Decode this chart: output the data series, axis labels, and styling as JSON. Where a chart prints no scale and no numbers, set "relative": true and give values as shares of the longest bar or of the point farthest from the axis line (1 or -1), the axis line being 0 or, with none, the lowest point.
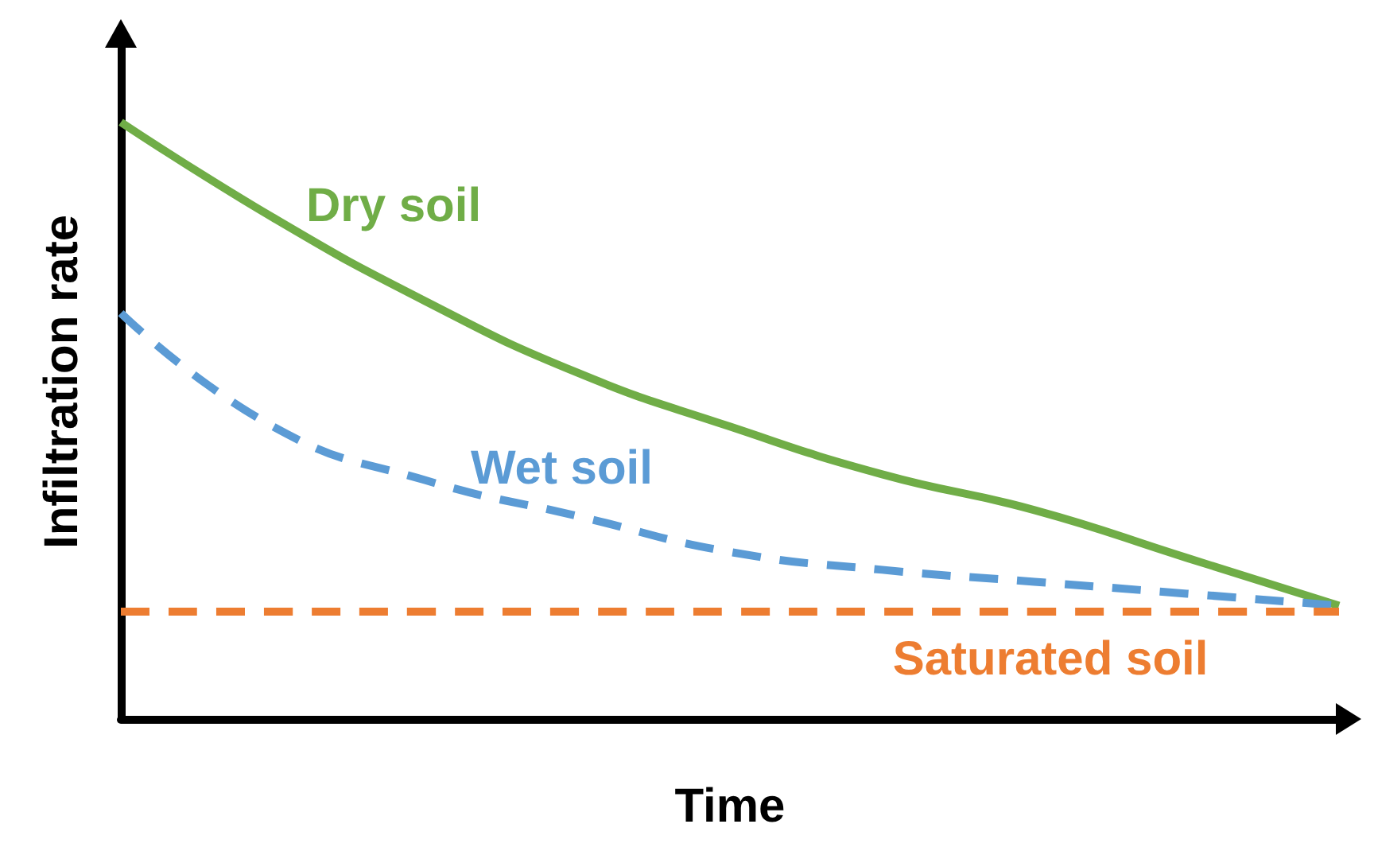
{
  "chart_data": {
    "type": "line",
    "relative": true,
    "xlabel": "Time",
    "ylabel": "Infiltration rate",
    "grid": false,
    "legend": false,
    "marker": "none",
    "categories": [
      null,
      null,
      null,
      null,
      null,
      null,
      null,
      null,
      null
    ],
    "series": [
      {
        "name": "Dry soil",
        "color": "#70ad47",
        "line_style": "solid",
        "values": [
          1,
          0.84,
          0.7,
          0.58,
          0.49,
          0.41,
          0.35,
          0.27,
          0.19
        ]
      },
      {
        "name": "Wet soil",
        "color": "#5b9bd5",
        "line_style": "dashed",
        "values": [
          0.68,
          0.49,
          0.4,
          0.34,
          0.28,
          0.25,
          0.23,
          0.21,
          0.19
        ]
      },
      {
        "name": "Saturated soil",
        "color": "#ed7d31",
        "line_style": "dashed",
        "values": [
          0.18,
          0.18,
          0.18,
          0.18,
          0.18,
          0.18,
          0.18,
          0.18,
          0.18
        ]
      }
    ]
  }
}
